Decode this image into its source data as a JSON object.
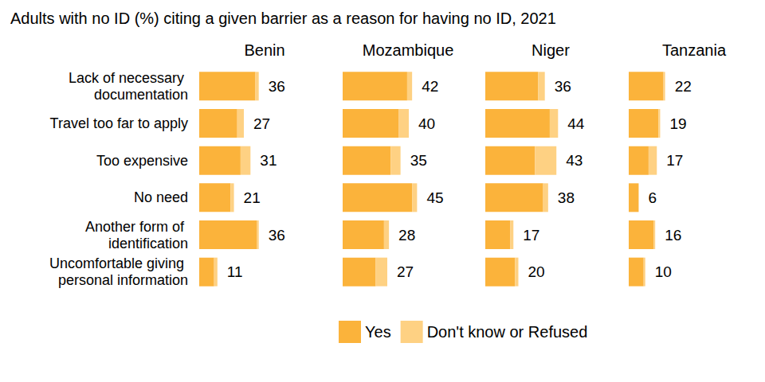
{
  "chart_data": {
    "type": "bar",
    "title": "Adults with no ID (%) citing a given barrier as a reason for having no ID, 2021",
    "orientation": "horizontal",
    "stacked": true,
    "data_labels": true,
    "tick_labels": "y",
    "legend": "bottom",
    "grid": false,
    "xlim": [
      0,
      80
    ],
    "categories": [
      "Lack of necessary documentation",
      "Travel too far to apply",
      "Too expensive",
      "No need",
      "Another form of identification",
      "Uncomfortable giving personal information"
    ],
    "panels": [
      {
        "title": "Benin",
        "series": [
          {
            "name": "Yes",
            "color": "#fbb33b",
            "values": [
              34,
              23,
              25,
              19,
              35,
              9
            ]
          },
          {
            "name": "Don't know or Refused",
            "color": "#fed183",
            "values": [
              2,
              4,
              6,
              2,
              1,
              2
            ]
          }
        ],
        "totals": [
          36,
          27,
          31,
          21,
          36,
          11
        ]
      },
      {
        "title": "Mozambique",
        "series": [
          {
            "name": "Yes",
            "color": "#fbb33b",
            "values": [
              39,
              34,
              29,
              42,
              25,
              20
            ]
          },
          {
            "name": "Don't know or Refused",
            "color": "#fed183",
            "values": [
              3,
              6,
              6,
              3,
              3,
              7
            ]
          }
        ],
        "totals": [
          42,
          40,
          35,
          45,
          28,
          27
        ]
      },
      {
        "title": "Niger",
        "series": [
          {
            "name": "Yes",
            "color": "#fbb33b",
            "values": [
              32,
              39,
              30,
              35,
              15,
              18
            ]
          },
          {
            "name": "Don't know or Refused",
            "color": "#fed183",
            "values": [
              4,
              5,
              13,
              3,
              2,
              2
            ]
          }
        ],
        "totals": [
          36,
          44,
          43,
          38,
          17,
          20
        ]
      },
      {
        "title": "Tanzania",
        "series": [
          {
            "name": "Yes",
            "color": "#fbb33b",
            "values": [
              21,
              18,
              12,
              6,
              15,
              9
            ]
          },
          {
            "name": "Don't know or Refused",
            "color": "#fed183",
            "values": [
              1,
              1,
              5,
              0,
              1,
              1
            ]
          }
        ],
        "totals": [
          22,
          19,
          17,
          6,
          16,
          10
        ]
      }
    ]
  }
}
